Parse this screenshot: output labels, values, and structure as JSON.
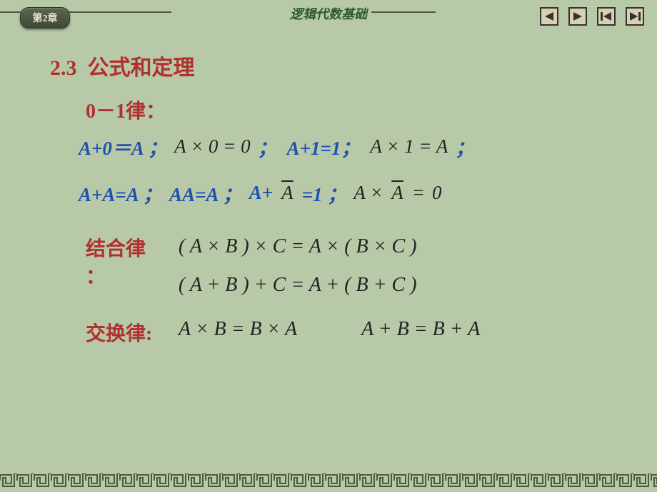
{
  "header": {
    "chapter_label": "第2章",
    "title": "逻辑代数基础",
    "line_color": "#4d5a3e",
    "nav_icon_border": "#333333",
    "nav_icon_bg": "#d8d0b0"
  },
  "section": {
    "number": "2.3",
    "title": "公式和定理",
    "color": "#b03030"
  },
  "laws": {
    "zero_one": {
      "title": "0－1律：",
      "row1": {
        "p1": "A+0＝A ；",
        "p2": "A × 0 =  0",
        "p2_sep": "；",
        "p3": "A+1=1；",
        "p4": "A × 1 =  A",
        "p4_sep": "；"
      },
      "row2": {
        "p1": "A+A=A ；",
        "p2": "AA=A ；",
        "p3_pre": "A+",
        "p3_bar": "A",
        "p3_post": " =1 ；",
        "p4_pre": "A ×",
        "p4_bar": "A",
        "p4_mid": " =  ",
        "p4_val": "0"
      }
    },
    "assoc": {
      "title": "结合律：",
      "f1": "( A × B ) × C =   A × ( B × C )",
      "f2": "( A +  B ) +  C =   A +  ( B +  C )"
    },
    "commut": {
      "title": "交换律:",
      "f1": "A × B =  B × A",
      "f2": "A +  B =  B +  A"
    }
  },
  "colors": {
    "bg": "#b8c9a8",
    "blue": "#2050b0",
    "black": "#222222",
    "red": "#b03030"
  }
}
